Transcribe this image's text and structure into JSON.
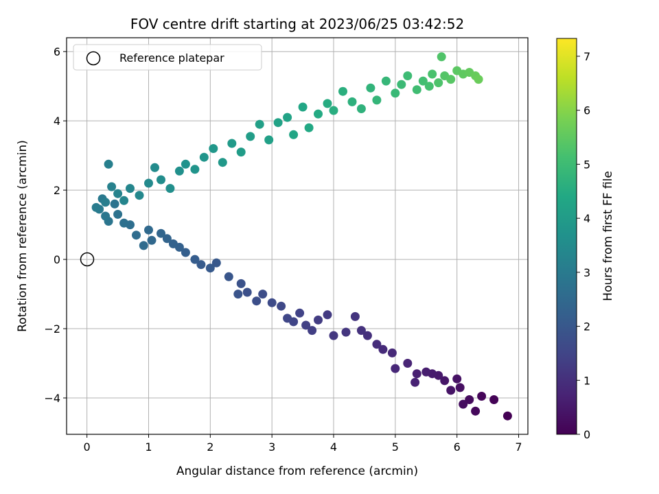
{
  "chart_data": {
    "type": "scatter",
    "title": "FOV centre drift starting at 2023/06/25 03:42:52",
    "xlabel": "Angular distance from reference (arcmin)",
    "ylabel": "Rotation from reference (arcmin)",
    "xlim": [
      -0.33,
      7.15
    ],
    "ylim": [
      -5.05,
      6.4
    ],
    "xticks": [
      "0",
      "1",
      "2",
      "3",
      "4",
      "5",
      "6",
      "7"
    ],
    "yticks": [
      "−4",
      "−2",
      "0",
      "2",
      "4",
      "6"
    ],
    "grid": true,
    "legend": {
      "placement": "top-left",
      "entries": [
        "Reference platepar"
      ]
    },
    "reference_point": {
      "x": 0,
      "y": 0
    },
    "colorbar": {
      "label": "Hours from first FF file",
      "colormap": "viridis",
      "range": [
        0,
        7.33
      ],
      "ticks": [
        "0",
        "1",
        "2",
        "3",
        "4",
        "5",
        "6",
        "7"
      ]
    },
    "series": [
      {
        "color_by": "hours",
        "points": [
          [
            6.82,
            -4.52,
            0.0
          ],
          [
            6.6,
            -4.05,
            0.05
          ],
          [
            6.4,
            -3.95,
            0.1
          ],
          [
            6.3,
            -4.38,
            0.15
          ],
          [
            6.2,
            -4.05,
            0.2
          ],
          [
            6.1,
            -4.18,
            0.25
          ],
          [
            6.05,
            -3.7,
            0.3
          ],
          [
            6.0,
            -3.45,
            0.35
          ],
          [
            5.9,
            -3.78,
            0.4
          ],
          [
            5.8,
            -3.5,
            0.45
          ],
          [
            5.7,
            -3.35,
            0.5
          ],
          [
            5.6,
            -3.3,
            0.55
          ],
          [
            5.5,
            -3.25,
            0.6
          ],
          [
            5.35,
            -3.3,
            0.65
          ],
          [
            5.32,
            -3.55,
            0.7
          ],
          [
            5.2,
            -3.0,
            0.75
          ],
          [
            5.0,
            -3.15,
            0.8
          ],
          [
            4.95,
            -2.7,
            0.85
          ],
          [
            4.8,
            -2.6,
            0.9
          ],
          [
            4.7,
            -2.45,
            0.95
          ],
          [
            4.55,
            -2.2,
            1.0
          ],
          [
            4.45,
            -2.05,
            1.05
          ],
          [
            4.35,
            -1.65,
            1.1
          ],
          [
            4.2,
            -2.1,
            1.15
          ],
          [
            4.0,
            -2.2,
            1.2
          ],
          [
            3.9,
            -1.6,
            1.25
          ],
          [
            3.75,
            -1.75,
            1.3
          ],
          [
            3.65,
            -2.05,
            1.35
          ],
          [
            3.55,
            -1.9,
            1.4
          ],
          [
            3.45,
            -1.55,
            1.45
          ],
          [
            3.35,
            -1.8,
            1.5
          ],
          [
            3.25,
            -1.7,
            1.55
          ],
          [
            3.15,
            -1.35,
            1.6
          ],
          [
            3.0,
            -1.25,
            1.65
          ],
          [
            2.85,
            -1.0,
            1.7
          ],
          [
            2.75,
            -1.2,
            1.75
          ],
          [
            2.6,
            -0.95,
            1.8
          ],
          [
            2.5,
            -0.7,
            1.85
          ],
          [
            2.45,
            -1.0,
            1.9
          ],
          [
            2.3,
            -0.5,
            1.95
          ],
          [
            2.1,
            -0.1,
            2.0
          ],
          [
            2.0,
            -0.25,
            2.05
          ],
          [
            1.85,
            -0.15,
            2.1
          ],
          [
            1.75,
            0.0,
            2.15
          ],
          [
            1.6,
            0.2,
            2.2
          ],
          [
            1.5,
            0.35,
            2.25
          ],
          [
            1.4,
            0.45,
            2.3
          ],
          [
            1.3,
            0.6,
            2.35
          ],
          [
            1.2,
            0.75,
            2.4
          ],
          [
            1.05,
            0.55,
            2.45
          ],
          [
            1.0,
            0.85,
            2.5
          ],
          [
            0.92,
            0.4,
            2.55
          ],
          [
            0.8,
            0.7,
            2.6
          ],
          [
            0.7,
            1.0,
            2.65
          ],
          [
            0.6,
            1.05,
            2.7
          ],
          [
            0.5,
            1.3,
            2.75
          ],
          [
            0.45,
            1.6,
            2.8
          ],
          [
            0.35,
            1.1,
            2.85
          ],
          [
            0.3,
            1.25,
            2.9
          ],
          [
            0.25,
            1.75,
            2.95
          ],
          [
            0.2,
            1.45,
            3.0
          ],
          [
            0.15,
            1.5,
            3.05
          ],
          [
            0.3,
            1.65,
            3.1
          ],
          [
            0.35,
            2.75,
            3.15
          ],
          [
            0.4,
            2.1,
            3.2
          ],
          [
            0.5,
            1.9,
            3.25
          ],
          [
            0.6,
            1.7,
            3.3
          ],
          [
            0.7,
            2.05,
            3.35
          ],
          [
            0.85,
            1.85,
            3.4
          ],
          [
            1.0,
            2.2,
            3.45
          ],
          [
            1.1,
            2.65,
            3.5
          ],
          [
            1.2,
            2.3,
            3.55
          ],
          [
            1.35,
            2.05,
            3.6
          ],
          [
            1.5,
            2.55,
            3.65
          ],
          [
            1.6,
            2.75,
            3.7
          ],
          [
            1.75,
            2.6,
            3.75
          ],
          [
            1.9,
            2.95,
            3.8
          ],
          [
            2.05,
            3.2,
            3.85
          ],
          [
            2.2,
            2.8,
            3.9
          ],
          [
            2.35,
            3.35,
            3.95
          ],
          [
            2.5,
            3.1,
            4.0
          ],
          [
            2.65,
            3.55,
            4.05
          ],
          [
            2.8,
            3.9,
            4.1
          ],
          [
            2.95,
            3.45,
            4.15
          ],
          [
            3.1,
            3.95,
            4.2
          ],
          [
            3.25,
            4.1,
            4.25
          ],
          [
            3.35,
            3.6,
            4.3
          ],
          [
            3.5,
            4.4,
            4.35
          ],
          [
            3.6,
            3.8,
            4.4
          ],
          [
            3.75,
            4.2,
            4.45
          ],
          [
            3.9,
            4.5,
            4.5
          ],
          [
            4.0,
            4.3,
            4.55
          ],
          [
            4.15,
            4.85,
            4.6
          ],
          [
            4.3,
            4.55,
            4.65
          ],
          [
            4.45,
            4.35,
            4.7
          ],
          [
            4.6,
            4.95,
            4.75
          ],
          [
            4.7,
            4.6,
            4.8
          ],
          [
            4.85,
            5.15,
            4.85
          ],
          [
            5.0,
            4.8,
            4.9
          ],
          [
            5.1,
            5.05,
            4.95
          ],
          [
            5.2,
            5.3,
            5.0
          ],
          [
            5.35,
            4.9,
            5.05
          ],
          [
            5.45,
            5.15,
            5.1
          ],
          [
            5.55,
            5.0,
            5.15
          ],
          [
            5.6,
            5.35,
            5.2
          ],
          [
            5.7,
            5.1,
            5.25
          ],
          [
            5.75,
            5.85,
            5.3
          ],
          [
            5.8,
            5.3,
            5.35
          ],
          [
            5.9,
            5.2,
            5.4
          ],
          [
            6.0,
            5.45,
            5.45
          ],
          [
            6.1,
            5.35,
            5.5
          ],
          [
            6.2,
            5.4,
            5.55
          ],
          [
            6.3,
            5.3,
            5.6
          ],
          [
            6.35,
            5.2,
            5.65
          ]
        ]
      }
    ]
  }
}
